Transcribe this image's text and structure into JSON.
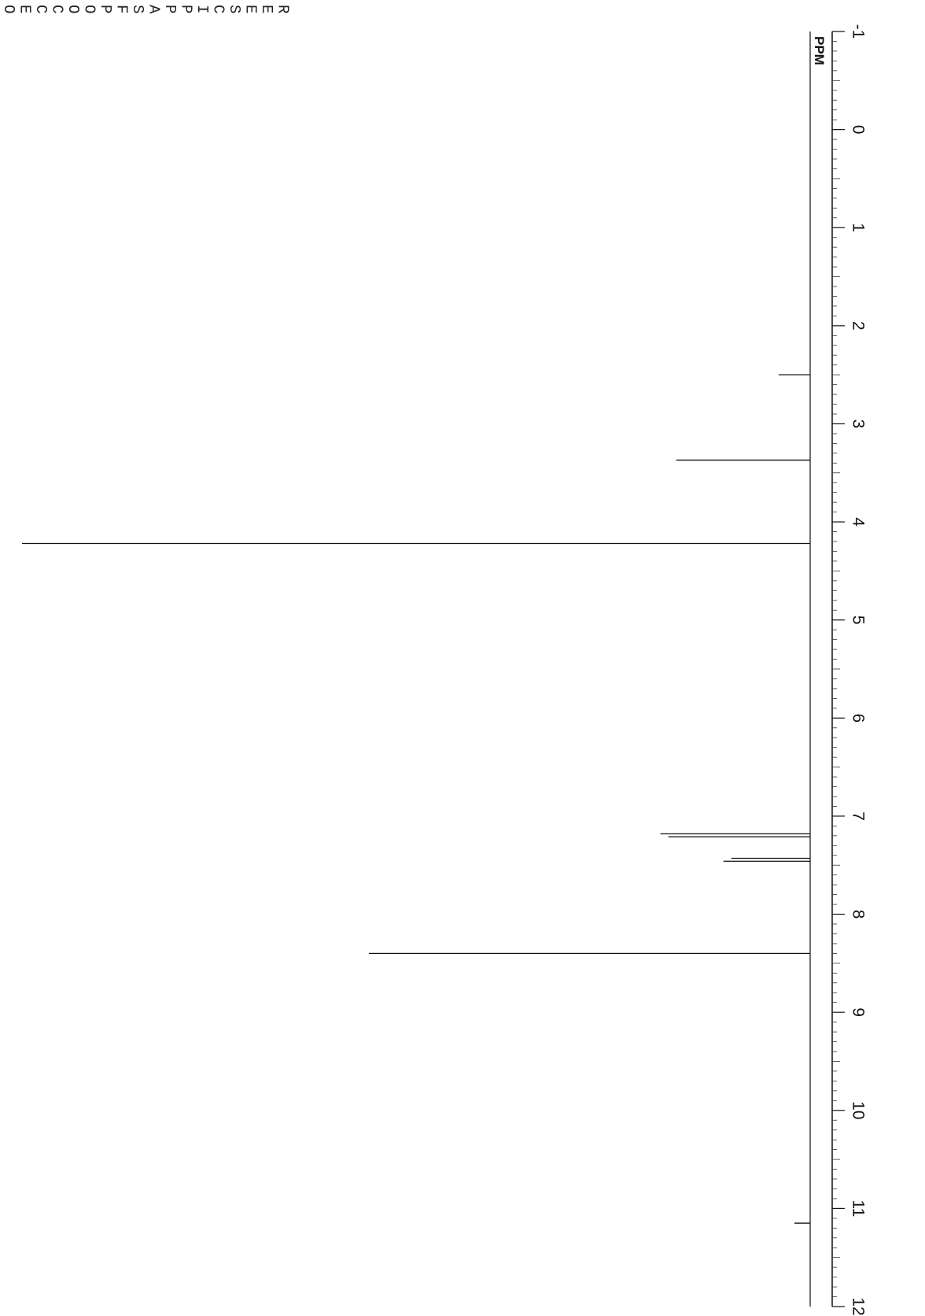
{
  "header": {
    "letters": [
      "O",
      "E",
      "C",
      "C",
      "O",
      "O",
      "P",
      "F",
      "S",
      "A",
      "P",
      "P",
      "I",
      "C",
      "S",
      "E",
      "E",
      "R"
    ]
  },
  "chart_data": {
    "type": "line",
    "title": "",
    "xlabel": "PPM",
    "ylabel": "",
    "x_axis_reversed": true,
    "xlim": [
      12,
      -1
    ],
    "x_ticks": [
      -1,
      0,
      1,
      2,
      3,
      4,
      5,
      6,
      7,
      8,
      9,
      10,
      11,
      12
    ],
    "x_tick_labels": [
      "-1",
      "0",
      "1",
      "2",
      "3",
      "4",
      "5",
      "6",
      "7",
      "8",
      "9",
      "10",
      "11",
      "12"
    ],
    "grid": false,
    "baseline_color": "#333333",
    "peaks": [
      {
        "ppm": 11.15,
        "relative_intensity": 0.02
      },
      {
        "ppm": 8.4,
        "relative_intensity": 0.56
      },
      {
        "ppm": 7.46,
        "relative_intensity": 0.11
      },
      {
        "ppm": 7.43,
        "relative_intensity": 0.1
      },
      {
        "ppm": 7.21,
        "relative_intensity": 0.18
      },
      {
        "ppm": 7.18,
        "relative_intensity": 0.19
      },
      {
        "ppm": 4.22,
        "relative_intensity": 1.0
      },
      {
        "ppm": 3.37,
        "relative_intensity": 0.17
      },
      {
        "ppm": 2.5,
        "relative_intensity": 0.04
      }
    ]
  }
}
